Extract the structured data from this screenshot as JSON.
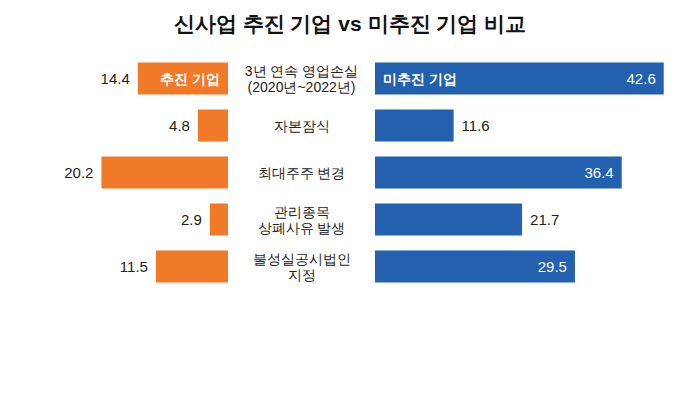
{
  "title": "신사업 추진 기업 vs 미추진 기업 비교",
  "chart_data": [
    {
      "type": "bar",
      "orientation": "horizontal",
      "categories": [
        "3년 연속 영업손실\n(2020년~2022년)",
        "자본잠식",
        "최대주주 변경",
        "관리종목\n상폐사유 발생",
        "불성실공시법인\n지정"
      ],
      "series": [
        {
          "name": "추진 기업",
          "color": "#f07a28",
          "values": [
            14.4,
            4.8,
            20.2,
            2.9,
            11.5
          ]
        }
      ],
      "xlim": [
        0,
        30
      ],
      "xticks": [
        0,
        10,
        20,
        30
      ],
      "grid": false,
      "tick_labels": "y",
      "data_labels": true
    },
    {
      "type": "bar",
      "orientation": "horizontal",
      "categories": [
        "3년 연속 영업손실\n(2020년~2022년)",
        "자본잠식",
        "최대주주 변경",
        "관리종목\n상폐사유 발생",
        "불성실공시법인\n지정"
      ],
      "series": [
        {
          "name": "미추진 기업",
          "color": "#2360ad",
          "values": [
            42.6,
            11.6,
            36.4,
            21.7,
            29.5
          ]
        }
      ],
      "xlim": [
        0,
        45
      ],
      "xticks": [
        0,
        15,
        30,
        45
      ],
      "grid": false,
      "tick_labels": false,
      "data_labels": true
    }
  ]
}
